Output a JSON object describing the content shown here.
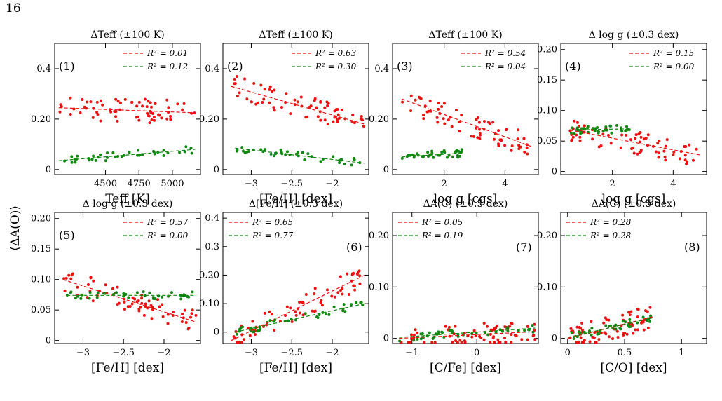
{
  "page_number": "16",
  "shared_ylabel": "⟨ΔA(O)⟩",
  "caption": "",
  "colors": {
    "red": "#ee1111",
    "green": "#118811"
  },
  "chart_data": [
    {
      "panel": "(1)",
      "type": "scatter",
      "title": "ΔTeff (±100 K)",
      "xlabel": "Teff [K]",
      "xlim": [
        4120,
        5210
      ],
      "ylim": [
        -0.02,
        0.5
      ],
      "xticks": [
        4500,
        4750,
        5000
      ],
      "yticks": [
        0.0,
        0.2,
        0.4
      ],
      "legend": [
        "R² = 0.01",
        "R² = 0.12"
      ],
      "legend_loc": "top-right",
      "red_fit": [
        [
          4150,
          0.245
        ],
        [
          5170,
          0.225
        ]
      ],
      "green_fit": [
        [
          4150,
          0.035
        ],
        [
          5170,
          0.08
        ]
      ],
      "red_center": 0.24,
      "green_center": 0.055
    },
    {
      "panel": "(2)",
      "type": "scatter",
      "title": "ΔTeff (±100 K)",
      "xlabel": "[Fe/H] [dex]",
      "xlim": [
        -3.35,
        -1.55
      ],
      "ylim": [
        -0.02,
        0.5
      ],
      "xticks": [
        -3.0,
        -2.5,
        -2.0
      ],
      "yticks": [
        0.0,
        0.2,
        0.4
      ],
      "legend": [
        "R² = 0.63",
        "R² = 0.30"
      ],
      "legend_loc": "top-right",
      "red_fit": [
        [
          -3.25,
          0.33
        ],
        [
          -1.6,
          0.18
        ]
      ],
      "green_fit": [
        [
          -3.2,
          0.085
        ],
        [
          -1.6,
          0.025
        ]
      ],
      "red_center": 0.25,
      "green_center": 0.06
    },
    {
      "panel": "(3)",
      "type": "scatter",
      "title": "ΔTeff (±100 K)",
      "xlabel": "log g [cgs]",
      "xlim": [
        0.3,
        5.1
      ],
      "ylim": [
        -0.02,
        0.5
      ],
      "xticks": [
        2,
        4
      ],
      "yticks": [
        0.0,
        0.2,
        0.4
      ],
      "legend": [
        "R² = 0.54",
        "R² = 0.04"
      ],
      "legend_loc": "top-right",
      "red_fit": [
        [
          0.6,
          0.28
        ],
        [
          4.9,
          0.09
        ]
      ],
      "green_fit": [
        [
          0.6,
          0.05
        ],
        [
          2.6,
          0.065
        ]
      ],
      "red_center": 0.26,
      "green_center": 0.06
    },
    {
      "panel": "(4)",
      "type": "scatter",
      "title": "Δ log g (±0.3 dex)",
      "xlabel": "log g [cgs]",
      "xlim": [
        0.3,
        5.1
      ],
      "ylim": [
        -0.005,
        0.21
      ],
      "xticks": [
        2,
        4
      ],
      "yticks": [
        0.0,
        0.05,
        0.1,
        0.15,
        0.2
      ],
      "legend": [
        "R² = 0.15",
        "R² = 0.00"
      ],
      "legend_loc": "top-right",
      "red_fit": [
        [
          0.6,
          0.068
        ],
        [
          4.9,
          0.027
        ]
      ],
      "green_fit": [
        [
          0.6,
          0.068
        ],
        [
          2.6,
          0.07
        ]
      ],
      "red_center": 0.065,
      "green_center": 0.068
    },
    {
      "panel": "(5)",
      "type": "scatter",
      "title": "Δ log g (±0.3 dex)",
      "xlabel": "[Fe/H] [dex]",
      "xlim": [
        -3.35,
        -1.55
      ],
      "ylim": [
        -0.005,
        0.21
      ],
      "xticks": [
        -3.0,
        -2.5,
        -2.0
      ],
      "yticks": [
        0.0,
        0.05,
        0.1,
        0.15,
        0.2
      ],
      "legend": [
        "R² = 0.57",
        "R² = 0.00"
      ],
      "legend_loc": "top-right",
      "red_fit": [
        [
          -3.25,
          0.1
        ],
        [
          -1.6,
          0.03
        ]
      ],
      "green_fit": [
        [
          -3.2,
          0.074
        ],
        [
          -1.6,
          0.074
        ]
      ],
      "red_center": 0.07,
      "green_center": 0.074
    },
    {
      "panel": "(6)",
      "type": "scatter",
      "title": "Δ[Fe/H] (±0.3 dex)",
      "xlabel": "[Fe/H] [dex]",
      "xlim": [
        -3.35,
        -1.55
      ],
      "ylim": [
        -0.04,
        0.42
      ],
      "xticks": [
        -3.0,
        -2.5,
        -2.0
      ],
      "yticks": [
        0.0,
        0.1,
        0.2,
        0.3,
        0.4
      ],
      "legend": [
        "R² = 0.65",
        "R² = 0.77"
      ],
      "legend_loc": "top-left",
      "red_fit": [
        [
          -3.25,
          -0.03
        ],
        [
          -1.6,
          0.2
        ]
      ],
      "green_fit": [
        [
          -3.2,
          0.0
        ],
        [
          -1.6,
          0.1
        ]
      ],
      "red_center": 0.08,
      "green_center": 0.05
    },
    {
      "panel": "(7)",
      "type": "scatter",
      "title": "ΔA(C) (±0.5 dex)",
      "xlabel": "[C/Fe] [dex]",
      "xlim": [
        -1.3,
        0.95
      ],
      "ylim": [
        -0.01,
        0.245
      ],
      "xticks": [
        -1,
        0
      ],
      "yticks": [
        0.0,
        0.1,
        0.2
      ],
      "legend": [
        "R² = 0.05",
        "R² = 0.19"
      ],
      "legend_loc": "top-left",
      "red_fit": [
        [
          -1.2,
          0.0
        ],
        [
          0.9,
          0.013
        ]
      ],
      "green_fit": [
        [
          -1.2,
          0.002
        ],
        [
          0.9,
          0.02
        ]
      ],
      "red_center": 0.005,
      "green_center": 0.005
    },
    {
      "panel": "(8)",
      "type": "scatter",
      "title": "ΔA(C) (±0.5 dex)",
      "xlabel": "[C/O] [dex]",
      "xlim": [
        -0.06,
        1.22
      ],
      "ylim": [
        -0.01,
        0.245
      ],
      "xticks": [
        0.0,
        0.5,
        1.0
      ],
      "yticks": [
        0.0,
        0.1,
        0.2
      ],
      "legend": [
        "R² = 0.28",
        "R² = 0.28"
      ],
      "legend_loc": "top-left",
      "red_fit": [
        [
          0.0,
          0.0
        ],
        [
          0.75,
          0.042
        ]
      ],
      "green_fit": [
        [
          0.0,
          0.002
        ],
        [
          0.75,
          0.04
        ]
      ],
      "red_center": 0.02,
      "green_center": 0.01
    }
  ]
}
